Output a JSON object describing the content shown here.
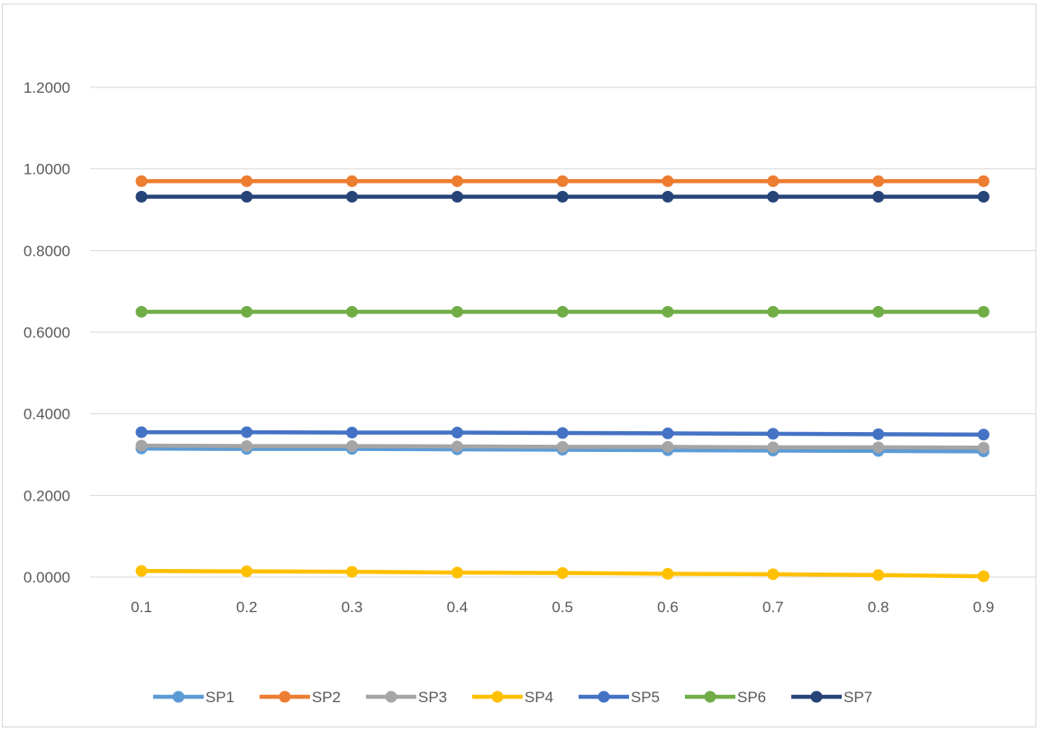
{
  "chart_data": {
    "type": "line",
    "title": "",
    "xlabel": "",
    "ylabel": "",
    "categories": [
      "0.1",
      "0.2",
      "0.3",
      "0.4",
      "0.5",
      "0.6",
      "0.7",
      "0.8",
      "0.9"
    ],
    "ylim": [
      0,
      1.2
    ],
    "yticks": [
      "0.0000",
      "0.2000",
      "0.4000",
      "0.6000",
      "0.8000",
      "1.0000",
      "1.2000"
    ],
    "grid": true,
    "legend_position": "bottom",
    "series": [
      {
        "name": "SP1",
        "color": "#5b9bd5",
        "values": [
          0.315,
          0.314,
          0.314,
          0.313,
          0.312,
          0.311,
          0.31,
          0.309,
          0.308
        ]
      },
      {
        "name": "SP2",
        "color": "#ed7d31",
        "values": [
          0.97,
          0.97,
          0.97,
          0.97,
          0.97,
          0.97,
          0.97,
          0.97,
          0.97
        ]
      },
      {
        "name": "SP3",
        "color": "#a5a5a5",
        "values": [
          0.322,
          0.321,
          0.321,
          0.32,
          0.319,
          0.319,
          0.318,
          0.318,
          0.317
        ]
      },
      {
        "name": "SP4",
        "color": "#ffc000",
        "values": [
          0.015,
          0.014,
          0.013,
          0.011,
          0.01,
          0.008,
          0.007,
          0.005,
          0.002
        ]
      },
      {
        "name": "SP5",
        "color": "#4472c4",
        "values": [
          0.355,
          0.355,
          0.354,
          0.354,
          0.353,
          0.352,
          0.351,
          0.35,
          0.349
        ]
      },
      {
        "name": "SP6",
        "color": "#70ad47",
        "values": [
          0.65,
          0.65,
          0.65,
          0.65,
          0.65,
          0.65,
          0.65,
          0.65,
          0.65
        ]
      },
      {
        "name": "SP7",
        "color": "#264478",
        "values": [
          0.932,
          0.932,
          0.932,
          0.932,
          0.932,
          0.932,
          0.932,
          0.932,
          0.932
        ]
      }
    ]
  }
}
